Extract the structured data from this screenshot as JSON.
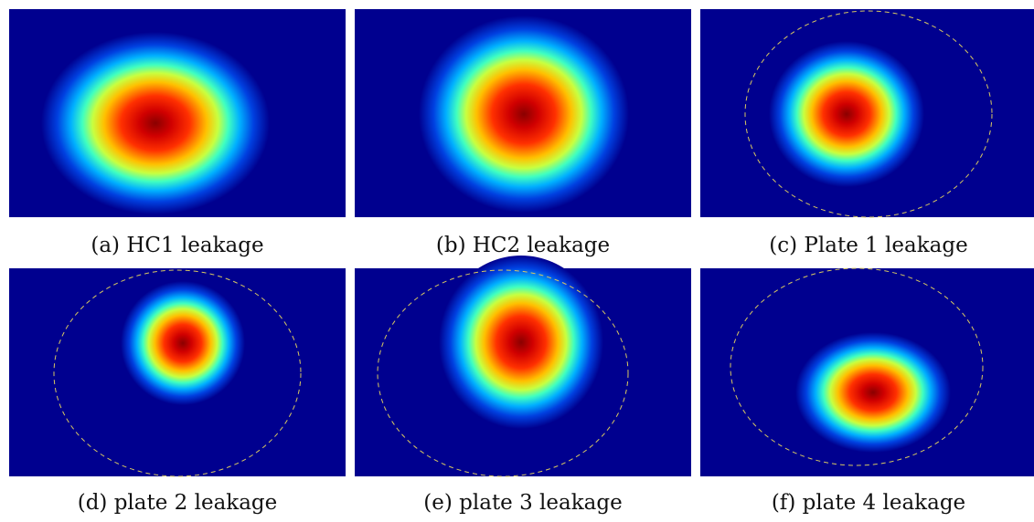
{
  "panels": [
    {
      "caption": "(a) HC1 leakage"
    },
    {
      "caption": "(b) HC2 leakage"
    },
    {
      "caption": "(c) Plate 1 leakage"
    },
    {
      "caption": "(d) plate 2 leakage"
    },
    {
      "caption": "(e) plate 3 leakage"
    },
    {
      "caption": "(f) plate 4 leakage"
    }
  ]
}
